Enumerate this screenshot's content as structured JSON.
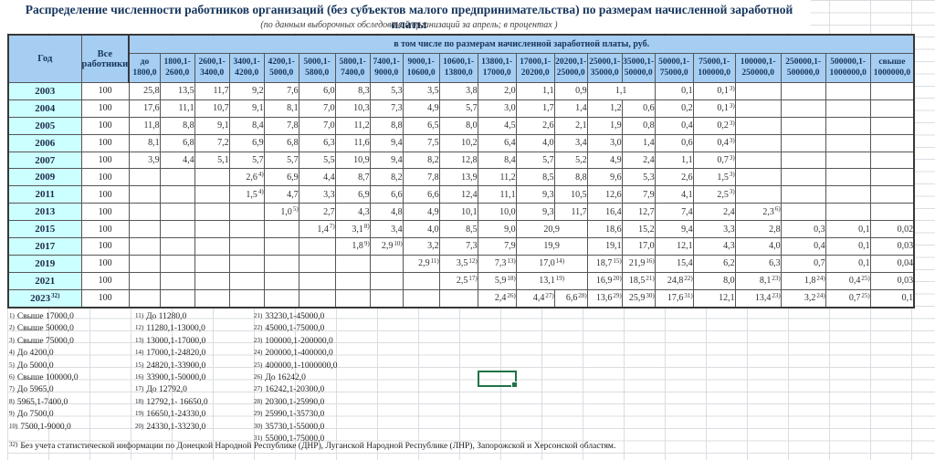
{
  "title": "Распределение численности работников организаций (без субъектов малого предпринимательства) по размерам начисленной заработной платы",
  "subtitle": "(по данным  выборочных обследований организаций за апрель; в процентах )",
  "colors": {
    "header_bg": "#a6cef2",
    "year_bg": "#ccffff",
    "header_text": "#17365d",
    "selection_green": "#217346",
    "gridline": "#dadde2"
  },
  "table": {
    "corner_header": "Год",
    "total_header": "Все\nработники",
    "group_header": "в том числе по размерам начисленной заработной платы, руб.",
    "columns": [
      "до\n1800,0",
      "1800,1-\n2600,0",
      "2600,1-\n3400,0",
      "3400,1-\n4200,0",
      "4200,1-\n5000,0",
      "5000,1-\n5800,0",
      "5800,1-\n7400,0",
      "7400,1-\n9000,0",
      "9000,1-\n10600,0",
      "10600,1-\n13800,0",
      "13800,1-\n17000,0",
      "17000,1-\n20200,0",
      "20200,1-\n25000,0",
      "25000,1-\n35000,0",
      "35000,1-\n50000,0",
      "50000,1-\n75000,0",
      "75000,1-\n100000,0",
      "100000,1-\n250000,0",
      "250000,1-\n500000,0",
      "500000,1-\n1000000,0",
      "свыше\n1000000,0"
    ],
    "rows": [
      {
        "y": "2003",
        "t": "100",
        "c": [
          "25,8",
          "13,5",
          "11,7",
          "9,2",
          "7,6",
          "6,0",
          "8,3",
          "5,3",
          "3,5",
          "3,8",
          "2,0",
          "1,1",
          "0,9",
          {
            "v": "1,1",
            "cs": 2
          },
          "0,1",
          {
            "v": "0,1",
            "s": "3)"
          },
          null,
          null,
          null,
          null
        ]
      },
      {
        "y": "2004",
        "t": "100",
        "c": [
          "17,6",
          "11,1",
          "10,7",
          "9,1",
          "8,1",
          "7,0",
          "10,3",
          "7,3",
          "4,9",
          "5,7",
          "3,0",
          "1,7",
          "1,4",
          "1,2",
          "0,6",
          "0,2",
          {
            "v": "0,1",
            "s": "3)"
          },
          null,
          null,
          null,
          null
        ]
      },
      {
        "y": "2005",
        "t": "100",
        "c": [
          "11,8",
          "8,8",
          "9,1",
          "8,4",
          "7,8",
          "7,0",
          "11,2",
          "8,8",
          "6,5",
          "8,0",
          "4,5",
          "2,6",
          "2,1",
          "1,9",
          "0,8",
          "0,4",
          {
            "v": "0,2",
            "s": "3)"
          },
          null,
          null,
          null,
          null
        ]
      },
      {
        "y": "2006",
        "t": "100",
        "c": [
          "8,1",
          "6,8",
          "7,2",
          "6,9",
          "6,8",
          "6,3",
          "11,6",
          "9,4",
          "7,5",
          "10,2",
          "6,4",
          "4,0",
          "3,4",
          "3,0",
          "1,4",
          "0,6",
          {
            "v": "0,4",
            "s": "3)"
          },
          null,
          null,
          null,
          null
        ]
      },
      {
        "y": "2007",
        "t": "100",
        "c": [
          "3,9",
          "4,4",
          "5,1",
          "5,7",
          "5,7",
          "5,5",
          "10,9",
          "9,4",
          "8,2",
          "12,8",
          "8,4",
          "5,7",
          "5,2",
          "4,9",
          "2,4",
          "1,1",
          {
            "v": "0,7",
            "s": "3)"
          },
          null,
          null,
          null,
          null
        ]
      },
      {
        "y": "2009",
        "t": "100",
        "c": [
          null,
          null,
          null,
          {
            "v": "2,6",
            "s": "4)"
          },
          "6,9",
          "4,4",
          "8,7",
          "8,2",
          "7,8",
          "13,9",
          "11,2",
          "8,5",
          "8,8",
          "9,6",
          "5,3",
          "2,6",
          {
            "v": "1,5",
            "s": "3)"
          },
          null,
          null,
          null,
          null
        ]
      },
      {
        "y": "2011",
        "t": "100",
        "c": [
          null,
          null,
          null,
          {
            "v": "1,5",
            "s": "4)"
          },
          "4,7",
          "3,3",
          "6,9",
          "6,6",
          "6,6",
          "12,4",
          "11,1",
          "9,3",
          "10,5",
          "12,6",
          "7,9",
          "4,1",
          {
            "v": "2,5",
            "s": "3)"
          },
          null,
          null,
          null,
          null
        ]
      },
      {
        "y": "2013",
        "t": "100",
        "c": [
          null,
          null,
          null,
          null,
          {
            "v": "1,0",
            "s": "5)"
          },
          "2,7",
          "4,3",
          "4,8",
          "4,9",
          "10,1",
          "10,0",
          "9,3",
          "11,7",
          "16,4",
          "12,7",
          "7,4",
          "2,4",
          {
            "v": "2,3",
            "s": "6)"
          },
          null,
          null,
          null
        ]
      },
      {
        "y": "2015",
        "t": "100",
        "c": [
          null,
          null,
          null,
          null,
          null,
          {
            "v": "1,4",
            "s": "7)"
          },
          {
            "v": "3,1",
            "s": "8)"
          },
          "3,4",
          "4,0",
          "8,5",
          "9,0",
          {
            "v": "20,9",
            "cs": 2
          },
          "18,6",
          "15,2",
          "9,4",
          "3,3",
          "2,8",
          "0,3",
          "0,1",
          "0,02"
        ]
      },
      {
        "y": "2017",
        "t": "100",
        "c": [
          null,
          null,
          null,
          null,
          null,
          null,
          {
            "v": "1,8",
            "s": "9)"
          },
          {
            "v": "2,9",
            "s": "10)"
          },
          "3,2",
          "7,3",
          "7,9",
          {
            "v": "19,9",
            "cs": 2
          },
          "19,1",
          "17,0",
          "12,1",
          "4,3",
          "4,0",
          "0,4",
          "0,1",
          "0,03"
        ]
      },
      {
        "y": "2019",
        "t": "100",
        "c": [
          null,
          null,
          null,
          null,
          null,
          null,
          null,
          null,
          {
            "v": "2,9",
            "s": "11)"
          },
          {
            "v": "3,5",
            "s": "12)"
          },
          {
            "v": "7,3",
            "s": "13)"
          },
          {
            "v": "17,0",
            "s": "14)",
            "cs": 2
          },
          {
            "v": "18,7",
            "s": "15)"
          },
          {
            "v": "21,9",
            "s": "16)"
          },
          "15,4",
          "6,2",
          "6,3",
          "0,7",
          "0,1",
          "0,04"
        ]
      },
      {
        "y": "2021",
        "t": "100",
        "c": [
          null,
          null,
          null,
          null,
          null,
          null,
          null,
          null,
          null,
          {
            "v": "2,5",
            "s": "17)"
          },
          {
            "v": "5,9",
            "s": "18)"
          },
          {
            "v": "13,1",
            "s": "19)",
            "cs": 2
          },
          {
            "v": "16,9",
            "s": "20)"
          },
          {
            "v": "18,5",
            "s": "21)"
          },
          {
            "v": "24,8",
            "s": "22)"
          },
          "8,0",
          {
            "v": "8,1",
            "s": "23)"
          },
          {
            "v": "1,8",
            "s": "24)"
          },
          {
            "v": "0,4",
            "s": "25)"
          },
          "0,03"
        ]
      },
      {
        "y": "2023",
        "ys": "32)",
        "t": "100",
        "c": [
          null,
          null,
          null,
          null,
          null,
          null,
          null,
          null,
          null,
          null,
          {
            "v": "2,4",
            "s": "26)"
          },
          {
            "v": "4,4",
            "s": "27)"
          },
          {
            "v": "6,6",
            "s": "28)"
          },
          {
            "v": "13,6",
            "s": "29)"
          },
          {
            "v": "25,9",
            "s": "30)"
          },
          {
            "v": "17,6",
            "s": "31)"
          },
          "12,1",
          {
            "v": "13,4",
            "s": "23)"
          },
          {
            "v": "3,2",
            "s": "24)"
          },
          {
            "v": "0,7",
            "s": "25)"
          },
          "0,1"
        ]
      }
    ]
  },
  "footnotes": {
    "col1": [
      {
        "m": "1)",
        "t": "Свыше 17000,0"
      },
      {
        "m": "2)",
        "t": "Свыше 50000,0"
      },
      {
        "m": "3)",
        "t": "Свыше 75000,0"
      },
      {
        "m": "4)",
        "t": "До 4200,0"
      },
      {
        "m": "5)",
        "t": "До 5000,0"
      },
      {
        "m": "6)",
        "t": "Свыше 100000,0"
      },
      {
        "m": "7)",
        "t": "До 5965,0"
      },
      {
        "m": "8)",
        "t": "5965,1-7400,0"
      },
      {
        "m": "9)",
        "t": "До 7500,0"
      },
      {
        "m": "10)",
        "t": "7500,1-9000,0"
      }
    ],
    "col2": [
      {
        "m": "11)",
        "t": "До 11280,0"
      },
      {
        "m": "12)",
        "t": "11280,1-13000,0"
      },
      {
        "m": "13)",
        "t": "13000,1-17000,0"
      },
      {
        "m": "14)",
        "t": "17000,1-24820,0"
      },
      {
        "m": "15)",
        "t": "24820,1-33900,0"
      },
      {
        "m": "16)",
        "t": "33900,1-50000,0"
      },
      {
        "m": "17)",
        "t": "До 12792,0"
      },
      {
        "m": "18)",
        "t": "12792,1- 16650,0"
      },
      {
        "m": "19)",
        "t": "16650,1-24330,0"
      },
      {
        "m": "20)",
        "t": "24330,1-33230,0"
      }
    ],
    "col3": [
      {
        "m": "21)",
        "t": "33230,1-45000,0"
      },
      {
        "m": "22)",
        "t": "45000,1-75000,0"
      },
      {
        "m": "23)",
        "t": "100000,1-200000,0"
      },
      {
        "m": "24)",
        "t": "200000,1-400000,0"
      },
      {
        "m": "25)",
        "t": "400000,1-1000000,0"
      },
      {
        "m": "26)",
        "t": "До 16242,0"
      },
      {
        "m": "27)",
        "t": "16242,1-20300,0"
      },
      {
        "m": "28)",
        "t": "20300,1-25990,0"
      },
      {
        "m": "29)",
        "t": "25990,1-35730,0"
      },
      {
        "m": "30)",
        "t": "35730,1-55000,0"
      },
      {
        "m": "31)",
        "t": "55000,1-75000,0"
      }
    ]
  },
  "bottom_note": {
    "m": "32)",
    "t": "Без учета статистической информации по Донецкой Народной Республике (ДНР), Луганской Народной Республике (ЛНР), Запорожской и Херсонской областям."
  }
}
